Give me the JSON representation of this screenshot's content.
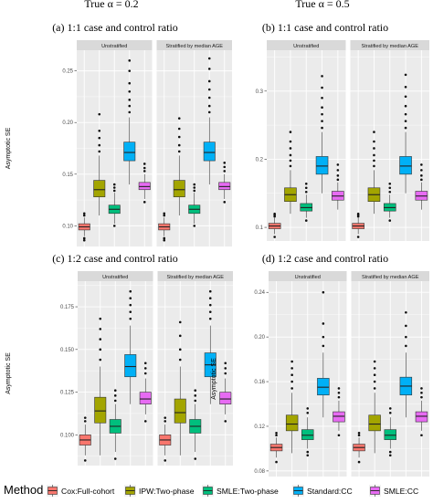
{
  "figure": {
    "column_titles": [
      "True α = 0.2",
      "True α = 0.5"
    ],
    "legend": {
      "title": "Method",
      "items": [
        {
          "label": "Cox:Full-cohort",
          "color": "#F8766D"
        },
        {
          "label": "IPW:Two-phase",
          "color": "#A3A500"
        },
        {
          "label": "SMLE:Two-phase",
          "color": "#00BF7D"
        },
        {
          "label": "Standard:CC",
          "color": "#00B0F6"
        },
        {
          "label": "SMLE:CC",
          "color": "#E76BF3"
        }
      ]
    },
    "panel_bg": "#EBEBEB",
    "strip_bg": "#D9D9D9"
  },
  "chart_data": [
    {
      "type": "box",
      "title": "(a) 1:1 case and control ratio",
      "ylabel": "Asymptotic SE",
      "facets": [
        "Unstratified",
        "Stratified by median AGE"
      ],
      "ylim": [
        0.08,
        0.27
      ],
      "yticks": [
        0.1,
        0.15,
        0.2,
        0.25
      ],
      "ytick_labels": [
        "0.10",
        "0.15",
        "0.20",
        "0.25"
      ],
      "categories": [
        "Cox:Full-cohort",
        "IPW:Two-phase",
        "SMLE:Two-phase",
        "Standard:CC",
        "SMLE:CC"
      ],
      "series": [
        {
          "facet": "Unstratified",
          "boxes": [
            {
              "min": 0.09,
              "q1": 0.096,
              "median": 0.099,
              "q3": 0.102,
              "max": 0.108,
              "outliers": [
                0.086,
                0.088,
                0.11,
                0.112
              ]
            },
            {
              "min": 0.11,
              "q1": 0.128,
              "median": 0.135,
              "q3": 0.144,
              "max": 0.168,
              "outliers": [
                0.172,
                0.178,
                0.185,
                0.192,
                0.208
              ]
            },
            {
              "min": 0.102,
              "q1": 0.112,
              "median": 0.116,
              "q3": 0.12,
              "max": 0.132,
              "outliers": [
                0.1,
                0.134,
                0.137,
                0.14
              ]
            },
            {
              "min": 0.14,
              "q1": 0.163,
              "median": 0.171,
              "q3": 0.181,
              "max": 0.205,
              "outliers": [
                0.21,
                0.216,
                0.222,
                0.23,
                0.238,
                0.25,
                0.26
              ]
            },
            {
              "min": 0.126,
              "q1": 0.135,
              "median": 0.138,
              "q3": 0.142,
              "max": 0.15,
              "outliers": [
                0.123,
                0.153,
                0.156,
                0.16
              ]
            }
          ]
        },
        {
          "facet": "Stratified by median AGE",
          "boxes": [
            {
              "min": 0.09,
              "q1": 0.096,
              "median": 0.099,
              "q3": 0.102,
              "max": 0.108,
              "outliers": [
                0.086,
                0.088,
                0.11,
                0.112
              ]
            },
            {
              "min": 0.11,
              "q1": 0.128,
              "median": 0.135,
              "q3": 0.144,
              "max": 0.168,
              "outliers": [
                0.172,
                0.178,
                0.186,
                0.194,
                0.204
              ]
            },
            {
              "min": 0.102,
              "q1": 0.112,
              "median": 0.116,
              "q3": 0.12,
              "max": 0.132,
              "outliers": [
                0.1,
                0.134,
                0.137,
                0.14
              ]
            },
            {
              "min": 0.14,
              "q1": 0.163,
              "median": 0.171,
              "q3": 0.181,
              "max": 0.205,
              "outliers": [
                0.21,
                0.216,
                0.224,
                0.232,
                0.24,
                0.252,
                0.262
              ]
            },
            {
              "min": 0.126,
              "q1": 0.135,
              "median": 0.138,
              "q3": 0.142,
              "max": 0.15,
              "outliers": [
                0.123,
                0.153,
                0.157,
                0.161
              ]
            }
          ]
        }
      ]
    },
    {
      "type": "box",
      "title": "(b) 1:1 case and control ratio",
      "ylabel": "",
      "facets": [
        "Unstratified",
        "Stratified by median AGE"
      ],
      "ylim": [
        0.08,
        0.36
      ],
      "yticks": [
        0.1,
        0.2,
        0.3
      ],
      "ytick_labels": [
        "0.1",
        "0.2",
        "0.3"
      ],
      "categories": [
        "Cox:Full-cohort",
        "IPW:Two-phase",
        "SMLE:Two-phase",
        "Standard:CC",
        "SMLE:CC"
      ],
      "series": [
        {
          "facet": "Unstratified",
          "boxes": [
            {
              "min": 0.09,
              "q1": 0.098,
              "median": 0.102,
              "q3": 0.106,
              "max": 0.114,
              "outliers": [
                0.086,
                0.116,
                0.118,
                0.12
              ]
            },
            {
              "min": 0.12,
              "q1": 0.138,
              "median": 0.148,
              "q3": 0.158,
              "max": 0.184,
              "outliers": [
                0.19,
                0.198,
                0.206,
                0.216,
                0.226,
                0.24
              ]
            },
            {
              "min": 0.114,
              "q1": 0.124,
              "median": 0.129,
              "q3": 0.135,
              "max": 0.148,
              "outliers": [
                0.11,
                0.152,
                0.158,
                0.164
              ]
            },
            {
              "min": 0.15,
              "q1": 0.178,
              "median": 0.19,
              "q3": 0.204,
              "max": 0.24,
              "outliers": [
                0.246,
                0.256,
                0.266,
                0.276,
                0.29,
                0.305,
                0.322
              ]
            },
            {
              "min": 0.126,
              "q1": 0.14,
              "median": 0.146,
              "q3": 0.153,
              "max": 0.166,
              "outliers": [
                0.17,
                0.176,
                0.184,
                0.192
              ]
            }
          ]
        },
        {
          "facet": "Stratified by median AGE",
          "boxes": [
            {
              "min": 0.09,
              "q1": 0.098,
              "median": 0.102,
              "q3": 0.106,
              "max": 0.114,
              "outliers": [
                0.086,
                0.116,
                0.118,
                0.12
              ]
            },
            {
              "min": 0.12,
              "q1": 0.138,
              "median": 0.148,
              "q3": 0.158,
              "max": 0.184,
              "outliers": [
                0.19,
                0.198,
                0.206,
                0.216,
                0.226,
                0.24
              ]
            },
            {
              "min": 0.114,
              "q1": 0.124,
              "median": 0.129,
              "q3": 0.135,
              "max": 0.148,
              "outliers": [
                0.11,
                0.152,
                0.158,
                0.164
              ]
            },
            {
              "min": 0.15,
              "q1": 0.178,
              "median": 0.19,
              "q3": 0.204,
              "max": 0.24,
              "outliers": [
                0.246,
                0.256,
                0.266,
                0.278,
                0.292,
                0.306,
                0.324
              ]
            },
            {
              "min": 0.126,
              "q1": 0.14,
              "median": 0.146,
              "q3": 0.153,
              "max": 0.166,
              "outliers": [
                0.17,
                0.176,
                0.184,
                0.192
              ]
            }
          ]
        }
      ]
    },
    {
      "type": "box",
      "title": "(c) 1:2 case and control ratio",
      "ylabel": "Asymptotic SE",
      "facets": [
        "Unstratified",
        "Stratified by median AGE"
      ],
      "ylim": [
        0.082,
        0.19
      ],
      "yticks": [
        0.1,
        0.125,
        0.15,
        0.175
      ],
      "ytick_labels": [
        "0.100",
        "0.125",
        "0.150",
        "0.175"
      ],
      "categories": [
        "Cox:Full-cohort",
        "IPW:Two-phase",
        "SMLE:Two-phase",
        "Standard:CC",
        "SMLE:CC"
      ],
      "series": [
        {
          "facet": "Unstratified",
          "boxes": [
            {
              "min": 0.088,
              "q1": 0.094,
              "median": 0.097,
              "q3": 0.1,
              "max": 0.106,
              "outliers": [
                0.085,
                0.108,
                0.11
              ]
            },
            {
              "min": 0.088,
              "q1": 0.107,
              "median": 0.114,
              "q3": 0.122,
              "max": 0.14,
              "outliers": [
                0.144,
                0.15,
                0.156,
                0.162,
                0.168
              ]
            },
            {
              "min": 0.09,
              "q1": 0.101,
              "median": 0.105,
              "q3": 0.109,
              "max": 0.118,
              "outliers": [
                0.086,
                0.12,
                0.123,
                0.126
              ]
            },
            {
              "min": 0.118,
              "q1": 0.134,
              "median": 0.14,
              "q3": 0.147,
              "max": 0.164,
              "outliers": [
                0.168,
                0.172,
                0.176,
                0.18,
                0.184
              ]
            },
            {
              "min": 0.112,
              "q1": 0.118,
              "median": 0.121,
              "q3": 0.125,
              "max": 0.133,
              "outliers": [
                0.108,
                0.136,
                0.139,
                0.142
              ]
            }
          ]
        },
        {
          "facet": "Stratified by median AGE",
          "boxes": [
            {
              "min": 0.088,
              "q1": 0.094,
              "median": 0.097,
              "q3": 0.1,
              "max": 0.106,
              "outliers": [
                0.085,
                0.108,
                0.11
              ]
            },
            {
              "min": 0.088,
              "q1": 0.107,
              "median": 0.113,
              "q3": 0.121,
              "max": 0.14,
              "outliers": [
                0.144,
                0.15,
                0.158,
                0.166
              ]
            },
            {
              "min": 0.09,
              "q1": 0.101,
              "median": 0.105,
              "q3": 0.109,
              "max": 0.118,
              "outliers": [
                0.086,
                0.12,
                0.123,
                0.126
              ]
            },
            {
              "min": 0.118,
              "q1": 0.134,
              "median": 0.141,
              "q3": 0.148,
              "max": 0.164,
              "outliers": [
                0.168,
                0.172,
                0.176,
                0.18,
                0.184
              ]
            },
            {
              "min": 0.112,
              "q1": 0.118,
              "median": 0.121,
              "q3": 0.125,
              "max": 0.133,
              "outliers": [
                0.108,
                0.136,
                0.139,
                0.142
              ]
            }
          ]
        }
      ]
    },
    {
      "type": "box",
      "title": "(d) 1:2 case and control ratio",
      "ylabel": "Asymptotic SE",
      "facets": [
        "Unstratified",
        "Stratified by median AGE"
      ],
      "ylim": [
        0.075,
        0.25
      ],
      "yticks": [
        0.08,
        0.12,
        0.16,
        0.2,
        0.24
      ],
      "ytick_labels": [
        "0.08",
        "0.12",
        "0.16",
        "0.20",
        "0.24"
      ],
      "categories": [
        "Cox:Full-cohort",
        "IPW:Two-phase",
        "SMLE:Two-phase",
        "Standard:CC",
        "SMLE:CC"
      ],
      "series": [
        {
          "facet": "Unstratified",
          "boxes": [
            {
              "min": 0.092,
              "q1": 0.098,
              "median": 0.101,
              "q3": 0.104,
              "max": 0.11,
              "outliers": [
                0.088,
                0.112,
                0.114
              ]
            },
            {
              "min": 0.096,
              "q1": 0.116,
              "median": 0.122,
              "q3": 0.13,
              "max": 0.15,
              "outliers": [
                0.154,
                0.16,
                0.166,
                0.172,
                0.178
              ]
            },
            {
              "min": 0.1,
              "q1": 0.108,
              "median": 0.112,
              "q3": 0.117,
              "max": 0.128,
              "outliers": [
                0.094,
                0.097,
                0.132,
                0.136
              ]
            },
            {
              "min": 0.128,
              "q1": 0.148,
              "median": 0.155,
              "q3": 0.163,
              "max": 0.186,
              "outliers": [
                0.192,
                0.2,
                0.212,
                0.24
              ]
            },
            {
              "min": 0.116,
              "q1": 0.124,
              "median": 0.129,
              "q3": 0.133,
              "max": 0.143,
              "outliers": [
                0.112,
                0.146,
                0.15,
                0.154
              ]
            }
          ]
        },
        {
          "facet": "Stratified by median AGE",
          "boxes": [
            {
              "min": 0.092,
              "q1": 0.098,
              "median": 0.101,
              "q3": 0.104,
              "max": 0.11,
              "outliers": [
                0.088,
                0.112,
                0.114
              ]
            },
            {
              "min": 0.096,
              "q1": 0.116,
              "median": 0.122,
              "q3": 0.13,
              "max": 0.15,
              "outliers": [
                0.154,
                0.16,
                0.166,
                0.172,
                0.178
              ]
            },
            {
              "min": 0.1,
              "q1": 0.108,
              "median": 0.112,
              "q3": 0.117,
              "max": 0.128,
              "outliers": [
                0.094,
                0.097,
                0.132,
                0.136
              ]
            },
            {
              "min": 0.128,
              "q1": 0.148,
              "median": 0.156,
              "q3": 0.164,
              "max": 0.186,
              "outliers": [
                0.192,
                0.2,
                0.21,
                0.222
              ]
            },
            {
              "min": 0.116,
              "q1": 0.124,
              "median": 0.129,
              "q3": 0.133,
              "max": 0.143,
              "outliers": [
                0.112,
                0.146,
                0.15,
                0.154
              ]
            }
          ]
        }
      ]
    }
  ]
}
